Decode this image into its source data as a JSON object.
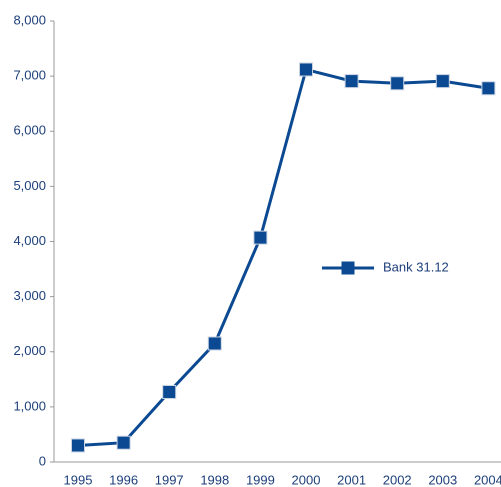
{
  "chart_data": {
    "type": "line",
    "categories": [
      "1995",
      "1996",
      "1997",
      "1998",
      "1999",
      "2000",
      "2001",
      "2002",
      "2003",
      "2004"
    ],
    "series": [
      {
        "name": "Bank 31.12",
        "color": "#0b4a92",
        "values": [
          300,
          350,
          1270,
          2150,
          4070,
          7120,
          6910,
          6870,
          6910,
          6780
        ]
      }
    ],
    "ylim": [
      0,
      8000
    ],
    "yticks": [
      0,
      {
        "value": 1000,
        "label": "1,000"
      },
      {
        "value": 2000,
        "label": "2,000"
      },
      {
        "value": 3000,
        "label": "3,000"
      },
      {
        "value": 4000,
        "label": "4,000"
      },
      {
        "value": 5000,
        "label": "5,000"
      },
      {
        "value": 6000,
        "label": "6,000"
      },
      {
        "value": 7000,
        "label": "7,000"
      },
      {
        "value": 8000,
        "label": "8,000"
      }
    ],
    "grid": false,
    "legend": "right"
  }
}
